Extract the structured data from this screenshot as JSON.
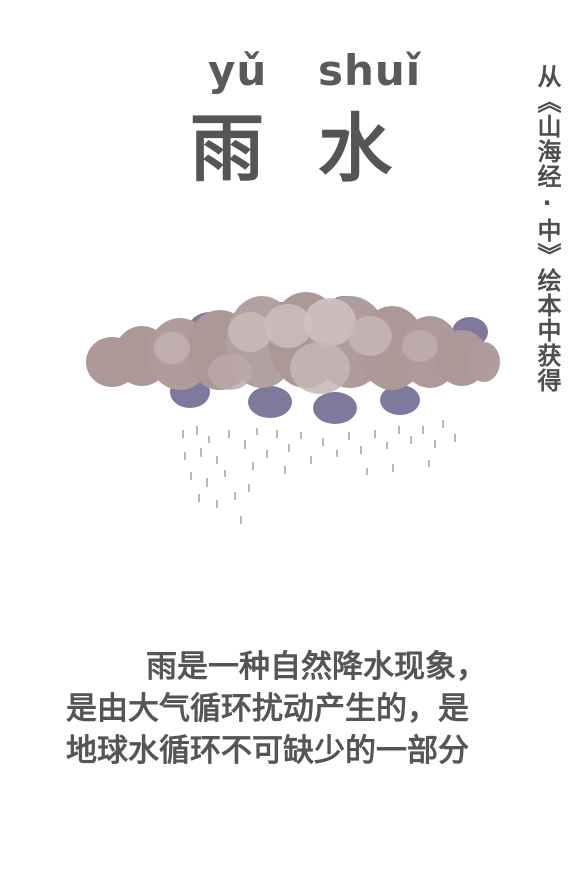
{
  "title": {
    "pinyin": [
      "yǔ",
      "shuǐ"
    ],
    "characters": [
      "雨",
      "水"
    ]
  },
  "side_note": "从《山海经·中》绘本中获得",
  "illustration": {
    "subject": "rain-cloud",
    "colors": {
      "cloud_main": "#ad9898",
      "cloud_light": "#c8b8b8",
      "cloud_shadow": "#7f7a9d",
      "rain": "#b8b8b8"
    }
  },
  "caption": {
    "lines": [
      "雨是一种自然降水现象，",
      "是由大气循环扰动产生的，是",
      "地球水循环不可缺少的一部分"
    ]
  }
}
